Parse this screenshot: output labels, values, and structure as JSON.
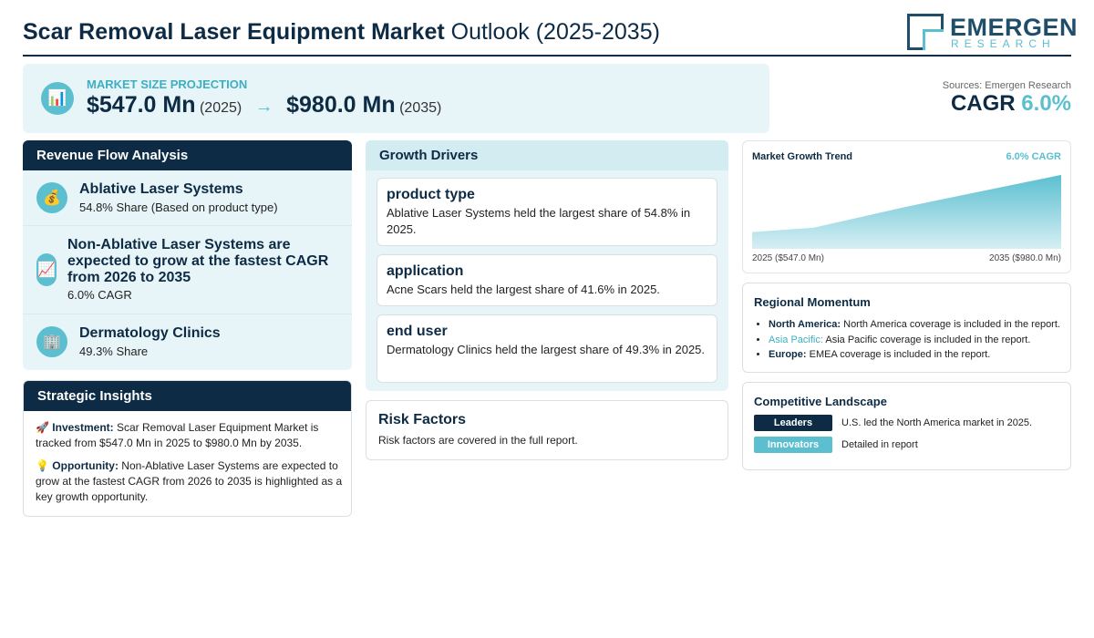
{
  "header": {
    "title_bold": "Scar Removal Laser Equipment Market",
    "title_rest": " Outlook (2025-2035)",
    "logo_name": "EMERGEN",
    "logo_sub": "RESEARCH"
  },
  "projection": {
    "label": "MARKET SIZE PROJECTION",
    "start_value": "$547.0 Mn",
    "start_year": "(2025)",
    "arrow": "→",
    "end_value": "$980.0 Mn",
    "end_year": "(2035)",
    "icon": "bar-chart-icon"
  },
  "summary": {
    "sources": "Sources: Emergen Research",
    "cagr_label": "CAGR",
    "cagr_value": "6.0%"
  },
  "revenue_flow": {
    "heading": "Revenue Flow Analysis",
    "items": [
      {
        "icon": "money-bag-icon",
        "glyph": "💰",
        "title": "Ablative Laser Systems",
        "subtitle": "54.8% Share (Based on product type)"
      },
      {
        "icon": "trend-up-icon",
        "glyph": "📈",
        "title": "Non-Ablative Laser Systems are expected to grow at the fastest CAGR from 2026 to 2035",
        "subtitle": "6.0% CAGR"
      },
      {
        "icon": "building-icon",
        "glyph": "🏢",
        "title": "Dermatology Clinics",
        "subtitle": "49.3% Share"
      }
    ]
  },
  "strategic": {
    "heading": "Strategic Insights",
    "investment_glyph": "🚀",
    "investment_label": "Investment:",
    "investment_text": " Scar Removal Laser Equipment Market is tracked from $547.0 Mn in 2025 to $980.0 Mn by 2035.",
    "opportunity_glyph": "💡",
    "opportunity_label": "Opportunity:",
    "opportunity_text": " Non-Ablative Laser Systems are expected to grow at the fastest CAGR from 2026 to 2035 is highlighted as a key growth opportunity."
  },
  "growth_drivers": {
    "heading": "Growth Drivers",
    "cards": [
      {
        "title": "product type",
        "text": "Ablative Laser Systems held the largest share of 54.8% in 2025."
      },
      {
        "title": "application",
        "text": "Acne Scars held the largest share of 41.6% in 2025."
      },
      {
        "title": "end user",
        "text": "Dermatology Clinics held the largest share of 49.3% in 2025."
      }
    ]
  },
  "risk": {
    "heading": "Risk Factors",
    "text": "Risk factors are covered in the full report."
  },
  "trend": {
    "heading": "Market Growth Trend",
    "cagr": "6.0% CAGR",
    "start_label": "2025 ($547.0 Mn)",
    "end_label": "2035 ($980.0 Mn)",
    "colors": {
      "top": "#5bbfd0",
      "bottom": "#d6eff4"
    }
  },
  "chart_data": {
    "type": "area",
    "x": [
      2025,
      2027,
      2030,
      2035
    ],
    "values": [
      547.0,
      580.0,
      740.0,
      980.0
    ],
    "ylim": [
      420,
      1000
    ],
    "grid": false,
    "title": "Market Growth Trend"
  },
  "regional": {
    "heading": "Regional Momentum",
    "items": [
      {
        "name": "North America:",
        "text": " North America coverage is included in the report."
      },
      {
        "name": "Asia Pacific:",
        "text": " Asia Pacific coverage is included in the report."
      },
      {
        "name": "Europe:",
        "text": " EMEA coverage is included in the report."
      }
    ]
  },
  "competitive": {
    "heading": "Competitive Landscape",
    "rows": [
      {
        "badge": "Leaders",
        "color": "#0d2b45",
        "text": "U.S. led the North America market in 2025."
      },
      {
        "badge": "Innovators",
        "color": "#5bbfd0",
        "text": "Detailed in report"
      }
    ]
  }
}
